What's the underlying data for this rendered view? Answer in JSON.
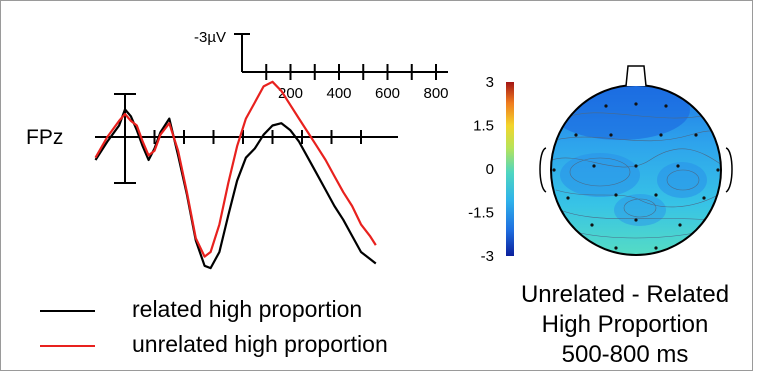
{
  "chart_data": [
    {
      "type": "line",
      "channel_label": "FPz",
      "scale_label": "-3µV",
      "time_ticks": [
        200,
        400,
        600,
        800
      ],
      "x_unit": "ms",
      "y_unit": "µV",
      "y_inverted": true,
      "series": [
        {
          "name": "related high proportion",
          "color": "#000000",
          "x": [
            -100,
            -60,
            -20,
            0,
            20,
            40,
            60,
            80,
            100,
            120,
            150,
            180,
            210,
            240,
            270,
            290,
            320,
            350,
            380,
            410,
            440,
            470,
            500,
            530,
            560,
            590,
            620,
            650,
            680,
            710,
            740,
            770,
            800,
            830,
            850
          ],
          "y": [
            1.0,
            0.2,
            -0.5,
            -1.2,
            -0.9,
            -0.3,
            0.4,
            1.0,
            0.5,
            -0.2,
            -0.8,
            0.8,
            2.5,
            4.5,
            5.6,
            5.7,
            5.0,
            3.4,
            1.9,
            0.9,
            0.5,
            -0.1,
            -0.5,
            -0.6,
            -0.3,
            0.2,
            0.9,
            1.6,
            2.3,
            3.0,
            3.6,
            4.3,
            5.0,
            5.3,
            5.5
          ]
        },
        {
          "name": "unrelated high proportion",
          "color": "#e8211e",
          "x": [
            -100,
            -60,
            -20,
            0,
            20,
            40,
            60,
            80,
            100,
            120,
            150,
            180,
            210,
            240,
            270,
            290,
            320,
            350,
            380,
            410,
            440,
            470,
            500,
            530,
            560,
            590,
            620,
            650,
            680,
            710,
            740,
            770,
            800,
            830,
            850
          ],
          "y": [
            0.9,
            0.0,
            -0.7,
            -1.0,
            -0.7,
            -0.5,
            0.2,
            0.8,
            0.6,
            -0.1,
            -0.6,
            0.6,
            2.4,
            4.4,
            5.2,
            5.0,
            3.8,
            2.0,
            0.4,
            -0.8,
            -1.5,
            -2.2,
            -2.4,
            -2.0,
            -1.4,
            -0.8,
            -0.2,
            0.4,
            1.0,
            1.7,
            2.4,
            3.0,
            3.8,
            4.3,
            4.7
          ]
        }
      ]
    },
    {
      "type": "heatmap",
      "subtype": "scalp-topography",
      "colorbar_ticks": [
        3,
        1.5,
        0,
        -1.5,
        -3
      ],
      "colormap": [
        "#0b1f9c",
        "#1f6fe0",
        "#2fb3ea",
        "#4fd6c0",
        "#b6e35a",
        "#f3d52b",
        "#ef7b1f",
        "#a31515"
      ],
      "caption_lines": [
        "Unrelated - Related",
        "High Proportion",
        "500-800 ms"
      ]
    }
  ],
  "legend": {
    "items": [
      {
        "label": "related high proportion",
        "color": "#000000"
      },
      {
        "label": "unrelated high proportion",
        "color": "#e8211e"
      }
    ]
  }
}
